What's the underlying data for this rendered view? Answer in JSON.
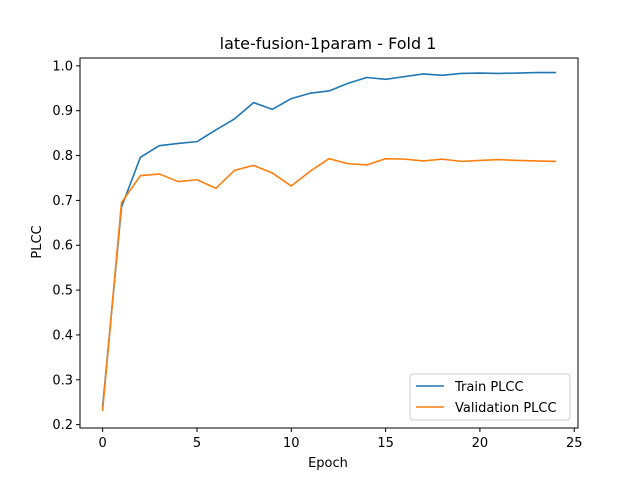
{
  "chart_data": {
    "type": "line",
    "title": "late-fusion-1param - Fold 1",
    "xlabel": "Epoch",
    "ylabel": "PLCC",
    "xlim": [
      -1.2,
      25.2
    ],
    "ylim": [
      0.1925,
      1.0175
    ],
    "xticks": [
      0,
      5,
      10,
      15,
      20,
      25
    ],
    "yticks": [
      0.2,
      0.3,
      0.4,
      0.5,
      0.6,
      0.7,
      0.8,
      0.9,
      1.0
    ],
    "grid": false,
    "legend_position": "bottom-right",
    "x": [
      0,
      1,
      2,
      3,
      4,
      5,
      6,
      7,
      8,
      9,
      10,
      11,
      12,
      13,
      14,
      15,
      16,
      17,
      18,
      19,
      20,
      21,
      22,
      23,
      24
    ],
    "series": [
      {
        "name": "Train PLCC",
        "color": "#1f77b4",
        "values": [
          0.24,
          0.685,
          0.796,
          0.822,
          0.827,
          0.831,
          0.857,
          0.882,
          0.918,
          0.903,
          0.927,
          0.939,
          0.944,
          0.961,
          0.974,
          0.97,
          0.976,
          0.982,
          0.979,
          0.983,
          0.984,
          0.983,
          0.984,
          0.985,
          0.985
        ]
      },
      {
        "name": "Validation PLCC",
        "color": "#ff7f0e",
        "values": [
          0.232,
          0.695,
          0.755,
          0.759,
          0.742,
          0.746,
          0.727,
          0.767,
          0.778,
          0.761,
          0.732,
          0.765,
          0.793,
          0.782,
          0.779,
          0.793,
          0.792,
          0.788,
          0.792,
          0.787,
          0.789,
          0.791,
          0.789,
          0.788,
          0.787
        ]
      }
    ]
  }
}
